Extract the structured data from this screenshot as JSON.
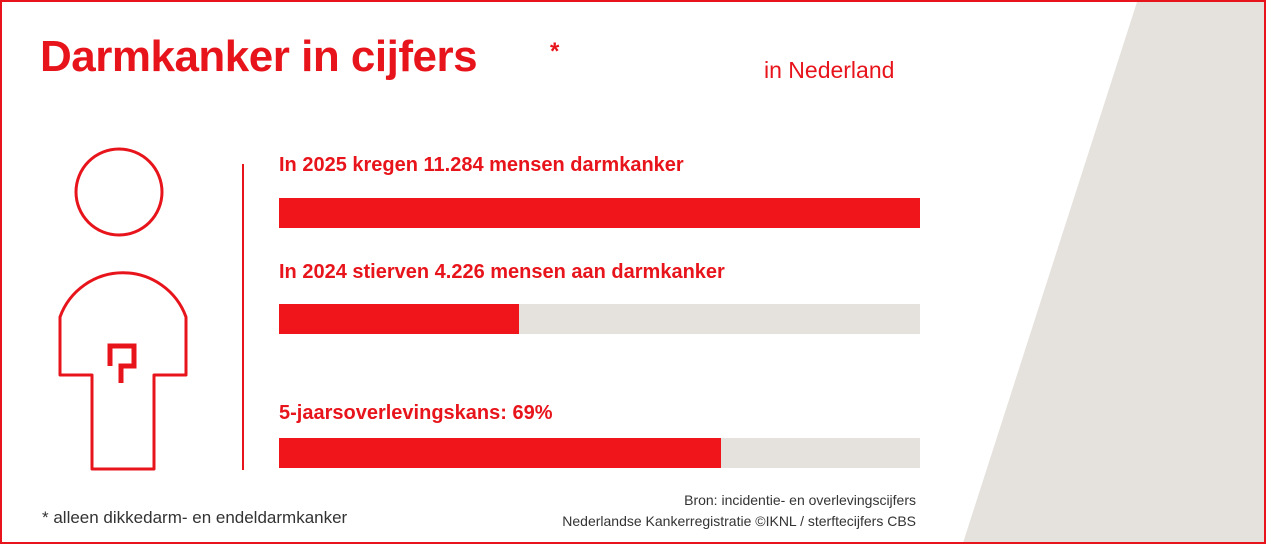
{
  "header": {
    "title": "Darmkanker in cijfers",
    "asterisk": "*",
    "region": "in Nederland"
  },
  "chart_data": {
    "type": "bar",
    "orientation": "horizontal",
    "bars": [
      {
        "label": "In 2025 kregen 11.284 mensen darmkanker",
        "value": 1.0
      },
      {
        "label": "In 2024 stierven 4.226 mensen aan darmkanker",
        "value": 0.375
      },
      {
        "label": "5-jaarsoverlevingskans: 69%",
        "value": 0.69
      }
    ],
    "xlim": [
      0,
      1
    ]
  },
  "footer": {
    "footnote": "* alleen dikkedarm- en endeldarmkanker",
    "source_line1": "Bron: incidentie- en overlevingscijfers",
    "source_line2": "Nederlandse Kankerregistratie ©IKNL / sterftecijfers CBS"
  },
  "colors": {
    "accent": "#e8141b",
    "bar_fill": "#f0141b",
    "track": "#e5e1dc",
    "wedge": "#e5e1dc"
  },
  "icons": {
    "figure": "person-outline-icon",
    "organ": "intestine-icon"
  }
}
